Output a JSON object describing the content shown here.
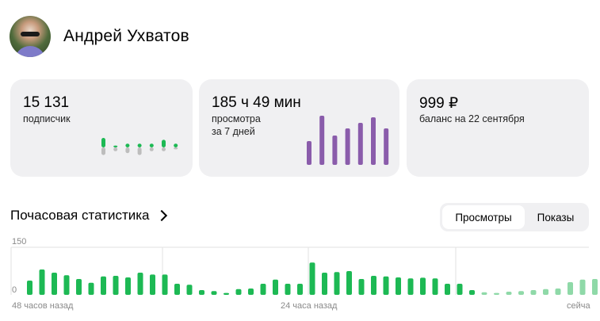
{
  "profile": {
    "name": "Андрей Ухватов"
  },
  "cards": [
    {
      "value": "15 131",
      "label_lines": [
        "подписчик"
      ]
    },
    {
      "value": "185 ч 49 мин",
      "label_lines": [
        "просмотра",
        "за 7 дней"
      ]
    },
    {
      "value": "999 ₽",
      "label_lines": [
        "баланс на 22 сентября"
      ]
    }
  ],
  "subscribers_chart": {
    "type": "bar",
    "colors": {
      "gain": "#1db954",
      "loss": "#bdbdbd"
    },
    "gains": [
      5,
      1,
      2,
      2,
      2,
      4,
      2
    ],
    "losses": [
      4,
      2,
      3,
      4,
      2,
      2,
      1
    ]
  },
  "views_chart": {
    "type": "bar",
    "color": "#8a5cab",
    "values": [
      30,
      62,
      37,
      46,
      53,
      60,
      46
    ]
  },
  "section": {
    "title": "Почасовая статистика"
  },
  "toggle": {
    "options": [
      "Просмотры",
      "Показы"
    ],
    "active": "Просмотры"
  },
  "chart_data": {
    "type": "bar",
    "ylim": [
      0,
      150
    ],
    "y_ticks": [
      "150",
      "0"
    ],
    "x_labels": [
      "48 часов назад",
      "24 часа назад",
      "сейча"
    ],
    "grid": true,
    "colors": {
      "past": "#1db954",
      "current": "#8fd9a8"
    },
    "values": [
      45,
      80,
      70,
      62,
      50,
      38,
      58,
      60,
      55,
      70,
      64,
      64,
      35,
      32,
      15,
      12,
      6,
      18,
      20,
      35,
      48,
      35,
      35,
      102,
      70,
      72,
      75,
      50,
      60,
      58,
      55,
      52,
      54,
      52,
      35,
      35,
      15,
      8,
      6,
      10,
      12,
      15,
      18,
      20,
      40,
      48,
      50
    ],
    "current_from_index": 37
  }
}
